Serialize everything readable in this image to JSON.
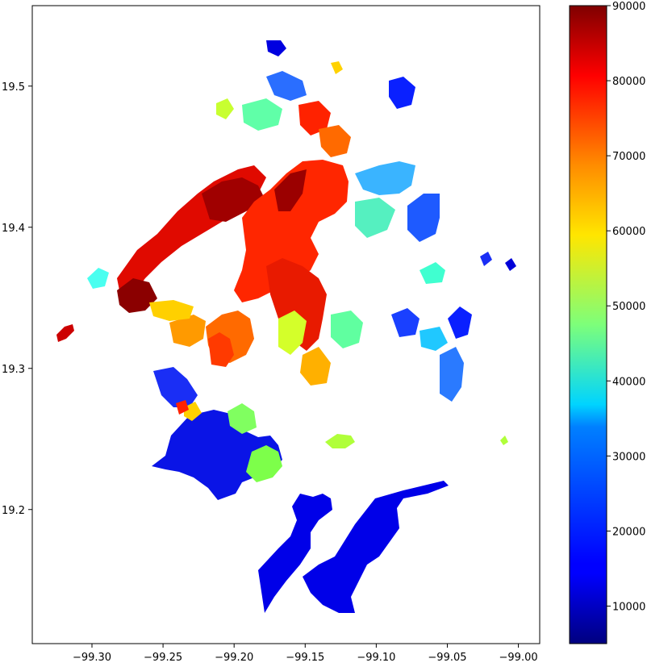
{
  "map": {
    "x_ticks": [
      {
        "value": -99.3,
        "label": "−99.30"
      },
      {
        "value": -99.25,
        "label": "−99.25"
      },
      {
        "value": -99.2,
        "label": "−99.20"
      },
      {
        "value": -99.15,
        "label": "−99.15"
      },
      {
        "value": -99.1,
        "label": "−99.10"
      },
      {
        "value": -99.05,
        "label": "−99.05"
      },
      {
        "value": -99.0,
        "label": "−99.00"
      }
    ],
    "y_ticks": [
      {
        "value": 19.2,
        "label": "19.2"
      },
      {
        "value": 19.3,
        "label": "19.3"
      },
      {
        "value": 19.4,
        "label": "19.4"
      },
      {
        "value": 19.5,
        "label": "19.5"
      }
    ],
    "xlim": [
      -99.342,
      -98.985
    ],
    "ylim": [
      19.105,
      19.557
    ]
  },
  "colorbar": {
    "colormap": "jet",
    "min": 5000,
    "max": 90000,
    "ticks": [
      {
        "value": 10000,
        "label": "10000"
      },
      {
        "value": 20000,
        "label": "20000"
      },
      {
        "value": 30000,
        "label": "30000"
      },
      {
        "value": 40000,
        "label": "40000"
      },
      {
        "value": 50000,
        "label": "50000"
      },
      {
        "value": 60000,
        "label": "60000"
      },
      {
        "value": 70000,
        "label": "70000"
      },
      {
        "value": 80000,
        "label": "80000"
      },
      {
        "value": 90000,
        "label": "90000"
      }
    ]
  }
}
